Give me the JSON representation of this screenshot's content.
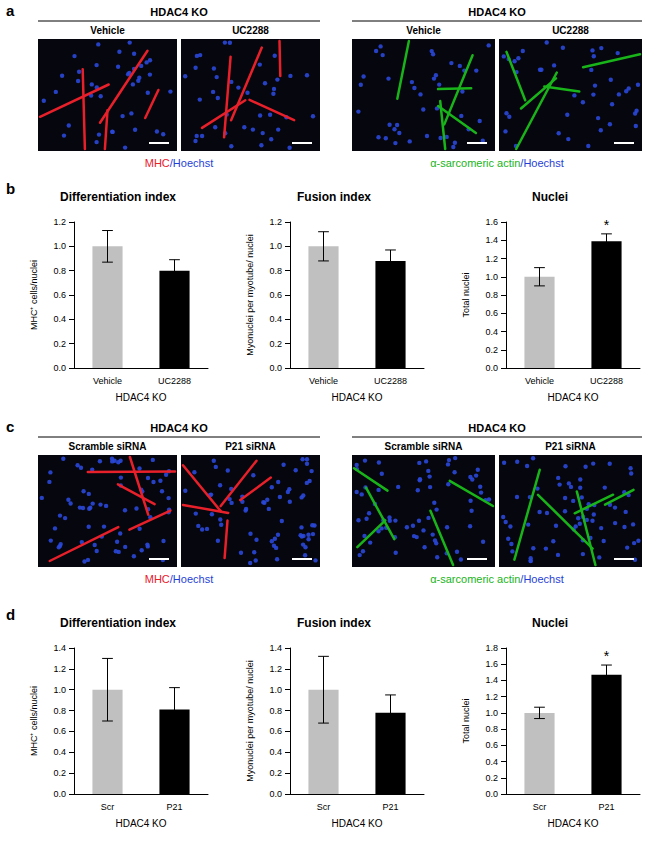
{
  "figure": {
    "panels": [
      {
        "label": "a",
        "groups": [
          {
            "header": "HDAC4 KO",
            "images": [
              "Vehicle",
              "UC2288"
            ],
            "stain": [
              {
                "text": "MHC",
                "color": "#e8202a"
              },
              {
                "text": "/Hoechst",
                "color": "#1f3fd6"
              }
            ]
          },
          {
            "header": "HDAC4 KO",
            "images": [
              "Vehicle",
              "UC2288"
            ],
            "stain": [
              {
                "text": "α-sarcomeric actin",
                "color": "#19b419"
              },
              {
                "text": "/Hoechst",
                "color": "#1f3fd6"
              }
            ]
          }
        ]
      },
      {
        "label": "b"
      },
      {
        "label": "c",
        "groups": [
          {
            "header": "HDAC4 KO",
            "images": [
              "Scramble siRNA",
              "P21 siRNA"
            ],
            "stain": [
              {
                "text": "MHC",
                "color": "#e8202a"
              },
              {
                "text": "/Hoechst",
                "color": "#1f3fd6"
              }
            ]
          },
          {
            "header": "HDAC4 KO",
            "images": [
              "Scramble siRNA",
              "P21 siRNA"
            ],
            "stain": [
              {
                "text": "α-sarcomeric actin",
                "color": "#19b419"
              },
              {
                "text": "/Hoechst",
                "color": "#1f3fd6"
              }
            ]
          }
        ]
      },
      {
        "label": "d"
      }
    ]
  },
  "chart_data": [
    {
      "panel": "b",
      "type": "bar",
      "title": "Differentiation index",
      "ylabel": "MHC⁺ cells/nuclei",
      "group_label": "HDAC4 KO",
      "categories": [
        "Vehicle",
        "UC2288"
      ],
      "values": [
        1.0,
        0.8
      ],
      "errors": [
        0.13,
        0.09
      ],
      "colors": [
        "#c0c0c0",
        "#000000"
      ],
      "ylim": [
        0,
        1.2
      ],
      "yticks": [
        {
          "value": 0,
          "label": "0.0"
        },
        0.2,
        0.4,
        0.6,
        0.8,
        {
          "value": 1,
          "label": "1.0"
        },
        1.2
      ]
    },
    {
      "panel": "b",
      "type": "bar",
      "title": "Fusion index",
      "ylabel": "Myonuclei per myotube/ nuclei",
      "group_label": "HDAC4 KO",
      "categories": [
        "Vehicle",
        "UC2288"
      ],
      "values": [
        1.0,
        0.88
      ],
      "errors": [
        0.12,
        0.09
      ],
      "colors": [
        "#c0c0c0",
        "#000000"
      ],
      "ylim": [
        0,
        1.2
      ],
      "yticks": [
        {
          "value": 0,
          "label": "0.0"
        },
        0.2,
        0.4,
        0.6,
        0.8,
        {
          "value": 1,
          "label": "1.0"
        },
        1.2
      ]
    },
    {
      "panel": "b",
      "type": "bar",
      "title": "Nuclei",
      "ylabel": "Total nuclei",
      "group_label": "HDAC4 KO",
      "categories": [
        "Vehicle",
        "UC2288"
      ],
      "values": [
        1.0,
        1.39
      ],
      "errors": [
        0.1,
        0.08
      ],
      "colors": [
        "#c0c0c0",
        "#000000"
      ],
      "annotations": [
        {
          "category": "UC2288",
          "text": "*"
        }
      ],
      "ylim": [
        0,
        1.6
      ],
      "yticks": [
        {
          "value": 0,
          "label": "0.0"
        },
        0.2,
        0.4,
        0.6,
        0.8,
        {
          "value": 1,
          "label": "1.0"
        },
        1.2,
        1.4,
        1.6
      ]
    },
    {
      "panel": "d",
      "type": "bar",
      "title": "Differentiation index",
      "ylabel": "MHC⁺ cells/nuclei",
      "group_label": "HDAC4 KO",
      "categories": [
        "Scr",
        "P21"
      ],
      "values": [
        1.0,
        0.81
      ],
      "errors": [
        0.3,
        0.21
      ],
      "colors": [
        "#c0c0c0",
        "#000000"
      ],
      "ylim": [
        0,
        1.4
      ],
      "yticks": [
        {
          "value": 0,
          "label": "0.0"
        },
        0.2,
        0.4,
        0.6,
        0.8,
        {
          "value": 1,
          "label": "1.0"
        },
        1.2,
        1.4
      ]
    },
    {
      "panel": "d",
      "type": "bar",
      "title": "Fusion index",
      "ylabel": "Myonuclei per myotube/ nuclei",
      "group_label": "HDAC4 KO",
      "categories": [
        "Scr",
        "P21"
      ],
      "values": [
        1.0,
        0.78
      ],
      "errors": [
        0.32,
        0.17
      ],
      "colors": [
        "#c0c0c0",
        "#000000"
      ],
      "ylim": [
        0,
        1.4
      ],
      "yticks": [
        {
          "value": 0,
          "label": "0.0"
        },
        0.2,
        0.4,
        0.6,
        0.8,
        {
          "value": 1,
          "label": "1.0"
        },
        1.2,
        1.4
      ]
    },
    {
      "panel": "d",
      "type": "bar",
      "title": "Nuclei",
      "ylabel": "Total nuclei",
      "group_label": "HDAC4 KO",
      "categories": [
        "Scr",
        "P21"
      ],
      "values": [
        1.0,
        1.47
      ],
      "errors": [
        0.07,
        0.12
      ],
      "colors": [
        "#c0c0c0",
        "#000000"
      ],
      "annotations": [
        {
          "category": "P21",
          "text": "*"
        }
      ],
      "ylim": [
        0,
        1.8
      ],
      "yticks": [
        {
          "value": 0,
          "label": "0.0"
        },
        0.2,
        0.4,
        0.6,
        0.8,
        {
          "value": 1,
          "label": "1.0"
        },
        1.2,
        1.4,
        1.6,
        1.8
      ]
    }
  ]
}
